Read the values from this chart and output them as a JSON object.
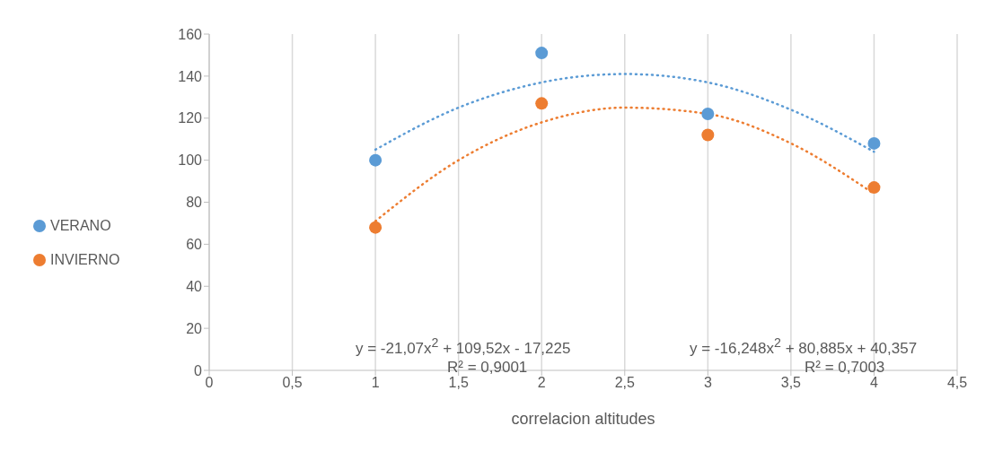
{
  "chart_data": {
    "type": "scatter",
    "xlabel": "correlacion altitudes",
    "xlim": [
      0,
      4.5
    ],
    "xticks": [
      0,
      {
        "value": 0.5,
        "label": "0,5"
      },
      1,
      {
        "value": 1.5,
        "label": "1,5"
      },
      2,
      {
        "value": 2.5,
        "label": "2,5"
      },
      3,
      {
        "value": 3.5,
        "label": "3,5"
      },
      4,
      {
        "value": 4.5,
        "label": "4,5"
      }
    ],
    "ylim": [
      0,
      160
    ],
    "yticks": [
      0,
      20,
      40,
      60,
      80,
      100,
      120,
      140,
      160
    ],
    "grid": "x",
    "legend": "left",
    "marker": "circle",
    "series": [
      {
        "name": "VERANO",
        "color": "#5b9bd5",
        "x": [
          1,
          2,
          3,
          4
        ],
        "values": [
          100,
          151,
          122,
          108
        ]
      },
      {
        "name": "INVIERNO",
        "color": "#ed7d31",
        "x": [
          1,
          2,
          3,
          4
        ],
        "values": [
          68,
          127,
          112,
          87
        ]
      },
      {
        "type": "line",
        "marker": "none",
        "line_style": "dotted",
        "color": "#5b9bd5",
        "x": [
          1,
          1.5,
          2,
          2.5,
          3,
          3.5,
          4
        ],
        "values": [
          105,
          125,
          137,
          141,
          137,
          124,
          104
        ]
      },
      {
        "type": "line",
        "marker": "none",
        "line_style": "dotted",
        "color": "#ed7d31",
        "x": [
          1,
          1.5,
          2,
          2.5,
          3,
          3.5,
          4
        ],
        "values": [
          71,
          100,
          118,
          125,
          122,
          108,
          84
        ]
      }
    ],
    "annotations": [
      "y = -21,07x$^{2}$ + 109,52x - 17,225",
      "R² = 0,9001",
      "y = -16,248x$^{2}$ + 80,885x + 40,357",
      "R² = 0,7003"
    ]
  }
}
